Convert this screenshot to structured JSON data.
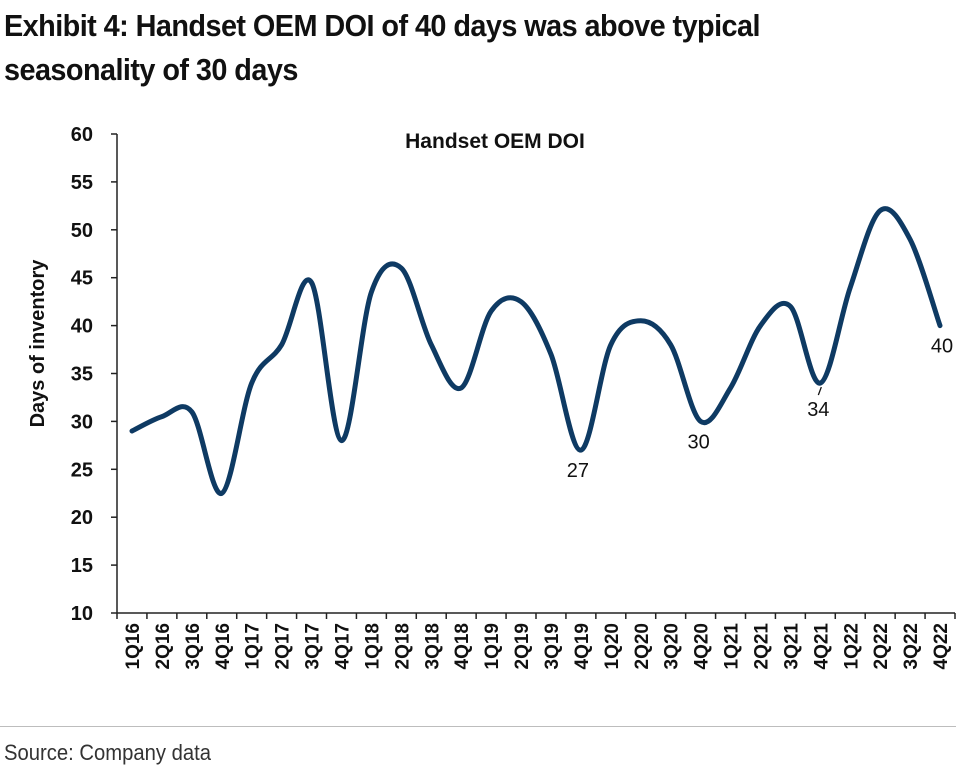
{
  "exhibit": {
    "title_line1": "Exhibit 4: Handset OEM DOI of 40 days was above typical",
    "title_line2": "seasonality of 30 days"
  },
  "source": "Source: Company data",
  "colors": {
    "line": "#0e3a63",
    "axis": "#222222",
    "text": "#111111"
  },
  "chart_data": {
    "type": "line",
    "title": "Handset OEM DOI",
    "ylabel": "Days of inventory",
    "xlabel": "",
    "ylim": [
      10,
      60
    ],
    "yticks": [
      10,
      15,
      20,
      25,
      30,
      35,
      40,
      45,
      50,
      55,
      60
    ],
    "grid": false,
    "smooth": true,
    "categories": [
      "1Q16",
      "2Q16",
      "3Q16",
      "4Q16",
      "1Q17",
      "2Q17",
      "3Q17",
      "4Q17",
      "1Q18",
      "2Q18",
      "3Q18",
      "4Q18",
      "1Q19",
      "2Q19",
      "3Q19",
      "4Q19",
      "1Q20",
      "2Q20",
      "3Q20",
      "4Q20",
      "1Q21",
      "2Q21",
      "3Q21",
      "4Q21",
      "1Q22",
      "2Q22",
      "3Q22",
      "4Q22"
    ],
    "series": [
      {
        "values": [
          29,
          30.5,
          31,
          22.5,
          34,
          38,
          44.5,
          28,
          43.5,
          46,
          38,
          33.5,
          41.5,
          42.5,
          37,
          27,
          38,
          40.5,
          38,
          30,
          33.5,
          40,
          42,
          34,
          44,
          52,
          49,
          40
        ]
      }
    ],
    "annotations": [
      {
        "category": "4Q19",
        "text": "27",
        "dy": 27,
        "dx": -3
      },
      {
        "category": "4Q20",
        "text": "30",
        "dy": 27,
        "dx": -2
      },
      {
        "category": "4Q21",
        "text": "34",
        "dy": 33,
        "dx": -2,
        "leader": true
      },
      {
        "category": "4Q22",
        "text": "40",
        "dy": 27,
        "dx": 2
      }
    ]
  }
}
